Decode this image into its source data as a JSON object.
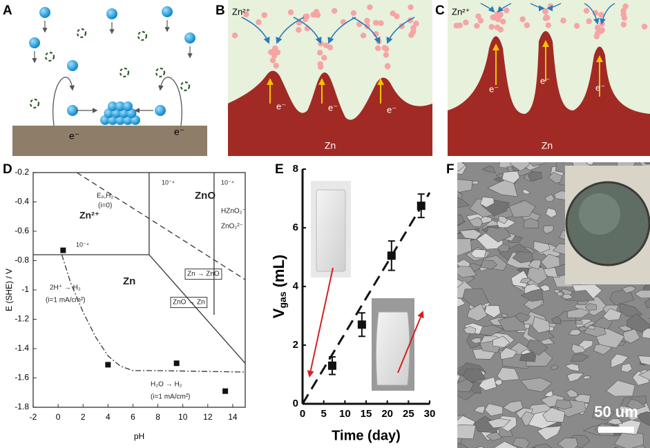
{
  "panel_labels": [
    "A",
    "B",
    "C",
    "D",
    "E",
    "F"
  ],
  "diagrams": {
    "A": {
      "electrons": [
        "e⁻",
        "e⁻"
      ]
    },
    "B": {
      "ion": "Zn²⁺",
      "electrons": [
        "e⁻",
        "e⁻",
        "e⁻"
      ],
      "metal": "Zn"
    },
    "C": {
      "ion": "Zn²⁺",
      "electrons": [
        "e⁻",
        "e⁻",
        "e⁻"
      ],
      "metal": "Zn"
    }
  },
  "chart_data": [
    {
      "type": "scatter",
      "xlabel": "pH",
      "ylabel": "E (SHE) / V",
      "xlim": [
        -2,
        15
      ],
      "ylim": [
        -1.8,
        -0.2
      ],
      "xticks": [
        -2,
        0,
        2,
        4,
        6,
        8,
        10,
        12,
        14
      ],
      "yticks": [
        -1.8,
        -1.6,
        -1.4,
        -1.2,
        -1,
        -0.8,
        -0.6,
        -0.4,
        -0.2
      ],
      "x": [
        0.4,
        4,
        9.5,
        13.4
      ],
      "values": [
        -0.73,
        -1.51,
        -1.5,
        -1.69
      ],
      "color": "#111111",
      "lines": [
        {
          "x": [
            -2,
            7.3
          ],
          "values": [
            -0.76,
            -0.76
          ],
          "style": "solid"
        },
        {
          "x": [
            7.3,
            15
          ],
          "values": [
            -0.76,
            -1.5
          ],
          "style": "solid"
        },
        {
          "x": [
            7.3,
            7.3
          ],
          "values": [
            -0.2,
            -0.76
          ],
          "style": "solid"
        },
        {
          "x": [
            12.5,
            12.5
          ],
          "values": [
            -0.2,
            -1.17
          ],
          "style": "solid"
        },
        {
          "x": [
            1.5,
            15
          ],
          "values": [
            -0.2,
            -0.93
          ],
          "style": "dashed"
        },
        {
          "x": [
            0.3,
            1,
            2,
            3,
            4,
            5,
            6,
            8,
            15
          ],
          "values": [
            -0.76,
            -0.95,
            -1.15,
            -1.32,
            -1.45,
            -1.52,
            -1.55,
            -1.55,
            -1.56
          ],
          "style": "dashdot"
        }
      ],
      "annotations": [
        "Eₒ,H₂",
        "(i=0)",
        "Zn²⁺",
        "10⁻⁴",
        "ZnO",
        "10⁻⁴",
        "HZnO₂⁻",
        "ZnO₂²⁻",
        "10⁻⁴",
        "Zn",
        "Zn → ZnO",
        "ZnO → Zn",
        "2H⁺ → H₂",
        "(i=1 mA/cm²)",
        "H₂O → H₂",
        "(i=1 mA/cm²)"
      ]
    },
    {
      "type": "errorbar",
      "xlabel": "Time (day)",
      "ylabel": "V",
      "ylabel_sub": "gas",
      "ylabel_unit": "(mL)",
      "xlim": [
        0,
        30
      ],
      "ylim": [
        0,
        8
      ],
      "xticks": [
        0,
        5,
        10,
        15,
        20,
        25,
        30
      ],
      "yticks": [
        0,
        2,
        4,
        6,
        8
      ],
      "x": [
        7,
        14,
        21,
        28
      ],
      "values": [
        1.3,
        2.7,
        5.05,
        6.75
      ],
      "errors": [
        0.3,
        0.4,
        0.5,
        0.4
      ],
      "color": "#111111",
      "fit": {
        "x": [
          0,
          30
        ],
        "values": [
          0,
          7.2
        ]
      }
    }
  ],
  "micrograph": {
    "scale_bar": "50 um"
  }
}
